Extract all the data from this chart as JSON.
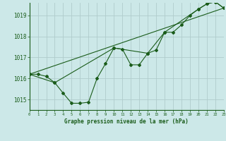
{
  "title": "Graphe pression niveau de la mer (hPa)",
  "bg_color": "#cce8e8",
  "grid_color": "#b8d8d8",
  "line_color": "#1a5c1a",
  "xlim": [
    0,
    23
  ],
  "ylim": [
    1014.5,
    1019.6
  ],
  "yticks": [
    1015,
    1016,
    1017,
    1018,
    1019
  ],
  "xticks": [
    0,
    1,
    2,
    3,
    4,
    5,
    6,
    7,
    8,
    9,
    10,
    11,
    12,
    13,
    14,
    15,
    16,
    17,
    18,
    19,
    20,
    21,
    22,
    23
  ],
  "series1": {
    "x": [
      0,
      1,
      2,
      3,
      4,
      5,
      6,
      7,
      8,
      9,
      10,
      11,
      12,
      13,
      14,
      15,
      16,
      17,
      18,
      19,
      20,
      21,
      22,
      23
    ],
    "y": [
      1016.2,
      1016.2,
      1016.1,
      1015.8,
      1015.3,
      1014.82,
      1014.82,
      1014.87,
      1016.0,
      1016.7,
      1017.45,
      1017.4,
      1016.65,
      1016.65,
      1017.2,
      1017.35,
      1018.2,
      1018.2,
      1018.55,
      1019.0,
      1019.3,
      1019.55,
      1019.65,
      1019.35
    ]
  },
  "series2": {
    "x": [
      0,
      3,
      10,
      14,
      16,
      20,
      21,
      22,
      23
    ],
    "y": [
      1016.2,
      1015.8,
      1017.45,
      1017.2,
      1018.2,
      1019.3,
      1019.55,
      1019.65,
      1019.35
    ]
  },
  "series3": {
    "x": [
      0,
      23
    ],
    "y": [
      1016.2,
      1019.35
    ]
  }
}
